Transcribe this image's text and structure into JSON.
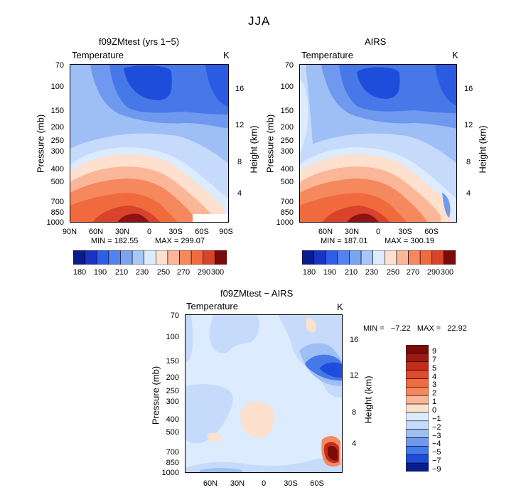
{
  "figure_title": "JJA",
  "colors": {
    "blue_dark": "#0a1d8c",
    "blue_mid": "#2e5ee6",
    "blue_light": "#9ebff5",
    "pale": "#dcebfd",
    "peach": "#fde0cd",
    "orange_mid": "#f06a3e",
    "red_dark": "#7a0b0b"
  },
  "chart_data": [
    {
      "type": "heatmap",
      "title": "f09ZMtest (yrs 1−5)",
      "field_label": "Temperature",
      "unit_label": "K",
      "ylabel": "Pressure (mb)",
      "ylabel_right": "Height (km)",
      "x_ticks": [
        "90N",
        "60N",
        "30N",
        "0",
        "30S",
        "60S",
        "90S"
      ],
      "y_ticks": [
        "70",
        "100",
        "150",
        "200",
        "250",
        "300",
        "400",
        "500",
        "700",
        "850",
        "1000"
      ],
      "y_right_ticks": [
        "16",
        "12",
        "8",
        "4"
      ],
      "min_label": "MIN = 182.55",
      "max_label": "MAX = 299.07",
      "levels": [
        180,
        190,
        200,
        210,
        220,
        230,
        240,
        250,
        260,
        270,
        280,
        290,
        300
      ],
      "colorbar_labels": [
        "180",
        "190",
        "210",
        "230",
        "250",
        "270",
        "290",
        "300"
      ]
    },
    {
      "type": "heatmap",
      "title": "AIRS",
      "field_label": "Temperature",
      "unit_label": "K",
      "ylabel": "Pressure (mb)",
      "ylabel_right": "Height (km)",
      "x_ticks": [
        "60N",
        "30N",
        "0",
        "30S",
        "60S"
      ],
      "y_ticks": [
        "70",
        "100",
        "150",
        "200",
        "250",
        "300",
        "400",
        "500",
        "700",
        "850",
        "1000"
      ],
      "y_right_ticks": [
        "16",
        "12",
        "8",
        "4"
      ],
      "min_label": "MIN = 187.01",
      "max_label": "MAX = 300.19",
      "levels": [
        180,
        190,
        200,
        210,
        220,
        230,
        240,
        250,
        260,
        270,
        280,
        290,
        300
      ],
      "colorbar_labels": [
        "180",
        "190",
        "210",
        "230",
        "250",
        "270",
        "290",
        "300"
      ]
    },
    {
      "type": "heatmap",
      "title": "f09ZMtest − AIRS",
      "field_label": "Temperature",
      "unit_label": "K",
      "ylabel": "Pressure (mb)",
      "ylabel_right": "Height (km)",
      "x_ticks": [
        "60N",
        "30N",
        "0",
        "30S",
        "60S"
      ],
      "y_ticks": [
        "70",
        "100",
        "150",
        "200",
        "250",
        "300",
        "400",
        "500",
        "700",
        "850",
        "1000"
      ],
      "y_right_ticks": [
        "16",
        "12",
        "8",
        "4"
      ],
      "min_max_label": "MIN =   −7.22   MAX =   22.92",
      "levels": [
        -9,
        -7,
        -5,
        -4,
        -3,
        -2,
        -1,
        0,
        1,
        2,
        3,
        4,
        5,
        7,
        9
      ],
      "colorbar_labels": [
        "9",
        "7",
        "5",
        "4",
        "3",
        "2",
        "1",
        "0",
        "−1",
        "−2",
        "−3",
        "−4",
        "−5",
        "−7",
        "−9"
      ]
    }
  ]
}
